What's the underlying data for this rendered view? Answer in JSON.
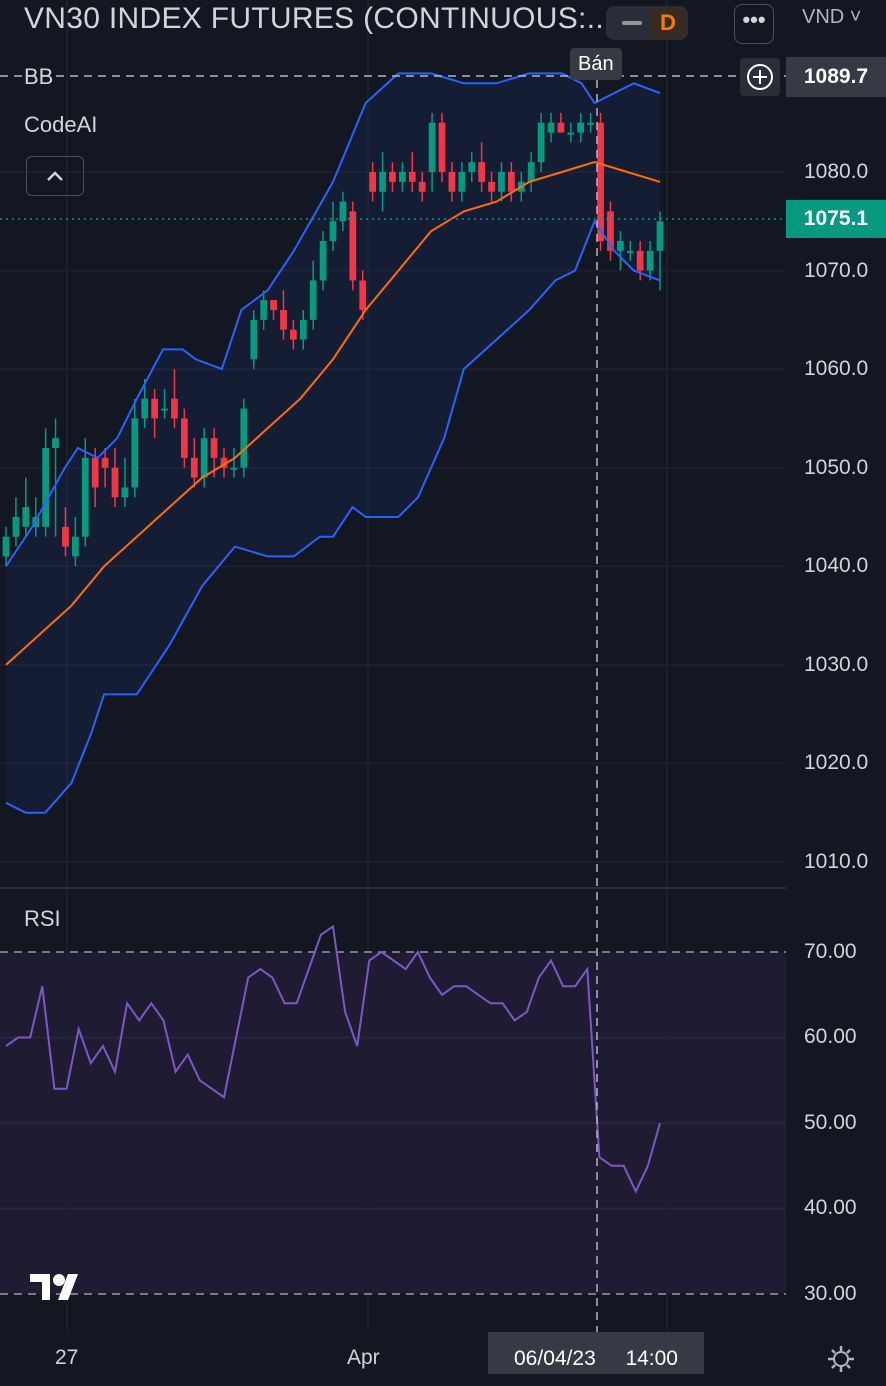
{
  "header": {
    "title": "VN30 INDEX FUTURES (CONTINUOUS:...",
    "interval": "D",
    "more_label": "•••",
    "currency": "VND ˅"
  },
  "indicators": {
    "bb_label": "BB",
    "codeai_label": "CodeAI",
    "collapse_icon": "chevron-up-icon",
    "rsi_label": "RSI"
  },
  "crosshair": {
    "signal_label": "Bán",
    "price": "1089.7",
    "date": "06/04/23",
    "time": "14:00"
  },
  "last_price": "1075.1",
  "price_axis": [
    "1080.0",
    "1070.0",
    "1060.0",
    "1050.0",
    "1040.0",
    "1030.0",
    "1020.0",
    "1010.0"
  ],
  "rsi_axis": [
    "70.00",
    "60.00",
    "50.00",
    "40.00",
    "30.00"
  ],
  "time_axis": [
    "27",
    "Apr"
  ],
  "colors": {
    "background": "#131722",
    "up": "#089981",
    "down": "#f23645",
    "bb_band": "#2962ff",
    "bb_basis": "#ff6d00",
    "rsi_line": "#7e57c2",
    "rsi_band": "#7e57c2"
  },
  "chart_data": [
    {
      "type": "candlestick",
      "title": "VN30 INDEX FUTURES (CONTINUOUS:...",
      "ylim": [
        1005,
        1094
      ],
      "candles": [
        [
          1041,
          1043,
          1040,
          1044
        ],
        [
          1043,
          1045,
          1042,
          1047
        ],
        [
          1044,
          1046,
          1043,
          1049
        ],
        [
          1044,
          1045,
          1043,
          1047
        ],
        [
          1044,
          1052,
          1043,
          1054
        ],
        [
          1052,
          1053,
          1043,
          1055
        ],
        [
          1044,
          1042,
          1041,
          1046
        ],
        [
          1041,
          1043,
          1040,
          1045
        ],
        [
          1043,
          1051,
          1042,
          1053
        ],
        [
          1051,
          1048,
          1046,
          1052
        ],
        [
          1051,
          1050,
          1048,
          1052
        ],
        [
          1050,
          1047,
          1046,
          1052
        ],
        [
          1047,
          1048,
          1046,
          1051
        ],
        [
          1048,
          1055,
          1047,
          1057
        ],
        [
          1055,
          1057,
          1054,
          1059
        ],
        [
          1057,
          1055,
          1053,
          1058
        ],
        [
          1056,
          1056,
          1055,
          1058
        ],
        [
          1057,
          1055,
          1054,
          1060
        ],
        [
          1055,
          1051,
          1050,
          1056
        ],
        [
          1051,
          1049,
          1048,
          1053
        ],
        [
          1049,
          1053,
          1048,
          1054
        ],
        [
          1053,
          1051,
          1049,
          1054
        ],
        [
          1051,
          1050,
          1049,
          1052
        ],
        [
          1050,
          1050,
          1049,
          1052
        ],
        [
          1050,
          1056,
          1049,
          1057
        ],
        [
          1061,
          1065,
          1060,
          1066
        ],
        [
          1065,
          1067,
          1064,
          1068
        ],
        [
          1067,
          1066,
          1065,
          1067
        ],
        [
          1066,
          1064,
          1063,
          1068
        ],
        [
          1064,
          1063,
          1062,
          1065
        ],
        [
          1063,
          1065,
          1062,
          1066
        ],
        [
          1065,
          1069,
          1064,
          1071
        ],
        [
          1069,
          1073,
          1068,
          1074
        ],
        [
          1073,
          1075,
          1072,
          1077
        ],
        [
          1075,
          1077,
          1074,
          1078
        ],
        [
          1076,
          1069,
          1068,
          1077
        ],
        [
          1069,
          1066,
          1065,
          1070
        ],
        [
          1080,
          1078,
          1077,
          1081
        ],
        [
          1078,
          1080,
          1076,
          1082
        ],
        [
          1080,
          1079,
          1078,
          1081
        ],
        [
          1079,
          1080,
          1078,
          1081
        ],
        [
          1080,
          1079,
          1078,
          1082
        ],
        [
          1079,
          1078,
          1077,
          1080
        ],
        [
          1080,
          1085,
          1078,
          1086
        ],
        [
          1085,
          1080,
          1079,
          1086
        ],
        [
          1080,
          1078,
          1077,
          1081
        ],
        [
          1078,
          1080,
          1077,
          1081
        ],
        [
          1080,
          1081,
          1079,
          1082
        ],
        [
          1081,
          1079,
          1078,
          1083
        ],
        [
          1079,
          1078,
          1077,
          1080
        ],
        [
          1078,
          1080,
          1077,
          1081
        ],
        [
          1080,
          1078,
          1077,
          1081
        ],
        [
          1078,
          1079,
          1077,
          1080
        ],
        [
          1079,
          1081,
          1078,
          1082
        ],
        [
          1081,
          1085,
          1080,
          1086
        ],
        [
          1084,
          1085,
          1083,
          1086
        ],
        [
          1085,
          1084,
          1084,
          1086
        ],
        [
          1084,
          1084,
          1083,
          1085
        ],
        [
          1084,
          1085,
          1083,
          1086
        ],
        [
          1085,
          1085,
          1084,
          1086
        ],
        [
          1085,
          1073,
          1072,
          1086
        ],
        [
          1076,
          1072,
          1071,
          1077
        ],
        [
          1072,
          1073,
          1070,
          1074
        ],
        [
          1072,
          1072,
          1071,
          1073
        ],
        [
          1072,
          1070,
          1069,
          1073
        ],
        [
          1070,
          1072,
          1069,
          1073
        ],
        [
          1072,
          1075,
          1068,
          1076
        ]
      ],
      "bb_upper": [
        [
          0,
          1040
        ],
        [
          0.04,
          1044
        ],
        [
          0.09,
          1050
        ],
        [
          0.11,
          1052
        ],
        [
          0.14,
          1051
        ],
        [
          0.17,
          1053
        ],
        [
          0.2,
          1057
        ],
        [
          0.24,
          1062
        ],
        [
          0.27,
          1062
        ],
        [
          0.29,
          1061
        ],
        [
          0.33,
          1060
        ],
        [
          0.36,
          1066
        ],
        [
          0.4,
          1068
        ],
        [
          0.44,
          1072
        ],
        [
          0.5,
          1079
        ],
        [
          0.55,
          1087
        ],
        [
          0.6,
          1090
        ],
        [
          0.65,
          1090
        ],
        [
          0.7,
          1089
        ],
        [
          0.75,
          1089
        ],
        [
          0.8,
          1090
        ],
        [
          0.85,
          1090
        ],
        [
          0.88,
          1089
        ],
        [
          0.9,
          1087
        ],
        [
          0.93,
          1088
        ],
        [
          0.96,
          1089
        ],
        [
          1,
          1088
        ]
      ],
      "bb_basis": [
        [
          0,
          1030
        ],
        [
          0.05,
          1033
        ],
        [
          0.1,
          1036
        ],
        [
          0.15,
          1040
        ],
        [
          0.2,
          1043
        ],
        [
          0.25,
          1046
        ],
        [
          0.3,
          1049
        ],
        [
          0.35,
          1051
        ],
        [
          0.4,
          1054
        ],
        [
          0.45,
          1057
        ],
        [
          0.5,
          1061
        ],
        [
          0.55,
          1066
        ],
        [
          0.6,
          1070
        ],
        [
          0.65,
          1074
        ],
        [
          0.7,
          1076
        ],
        [
          0.75,
          1077
        ],
        [
          0.8,
          1079
        ],
        [
          0.85,
          1080
        ],
        [
          0.9,
          1081
        ],
        [
          0.95,
          1080
        ],
        [
          1,
          1079
        ]
      ],
      "bb_lower": [
        [
          0,
          1016
        ],
        [
          0.03,
          1015
        ],
        [
          0.06,
          1015
        ],
        [
          0.1,
          1018
        ],
        [
          0.13,
          1023
        ],
        [
          0.15,
          1027
        ],
        [
          0.2,
          1027
        ],
        [
          0.25,
          1032
        ],
        [
          0.3,
          1038
        ],
        [
          0.35,
          1042
        ],
        [
          0.4,
          1041
        ],
        [
          0.44,
          1041
        ],
        [
          0.48,
          1043
        ],
        [
          0.5,
          1043
        ],
        [
          0.53,
          1046
        ],
        [
          0.55,
          1045
        ],
        [
          0.6,
          1045
        ],
        [
          0.63,
          1047
        ],
        [
          0.67,
          1053
        ],
        [
          0.7,
          1060
        ],
        [
          0.75,
          1063
        ],
        [
          0.8,
          1066
        ],
        [
          0.84,
          1069
        ],
        [
          0.87,
          1070
        ],
        [
          0.9,
          1075
        ],
        [
          0.93,
          1072
        ],
        [
          0.96,
          1070
        ],
        [
          1,
          1069
        ]
      ]
    },
    {
      "type": "line",
      "title": "RSI",
      "ylim": [
        28,
        74
      ],
      "band": [
        30,
        70
      ],
      "values": [
        59,
        60,
        60,
        66,
        54,
        54,
        61,
        57,
        59,
        56,
        64,
        62,
        64,
        62,
        56,
        58,
        55,
        54,
        53,
        60,
        67,
        68,
        67,
        64,
        64,
        68,
        72,
        73,
        63,
        59,
        69,
        70,
        69,
        68,
        70,
        67,
        65,
        66,
        66,
        65,
        64,
        64,
        62,
        63,
        67,
        69,
        66,
        66,
        68,
        46,
        45,
        45,
        42,
        45,
        50
      ]
    }
  ]
}
